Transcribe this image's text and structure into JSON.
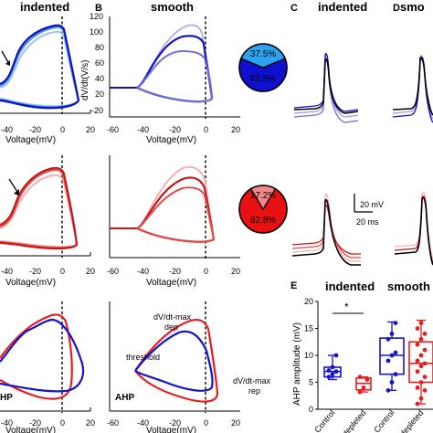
{
  "figure": {
    "titles": [
      {
        "id": "A",
        "text": "indented"
      },
      {
        "id": "B",
        "text": "smooth"
      },
      {
        "id": "C",
        "text": "indented"
      },
      {
        "id": "D",
        "text": "smo"
      }
    ],
    "letters": [
      {
        "id": "B",
        "text": "B"
      },
      {
        "id": "C",
        "text": "C"
      },
      {
        "id": "D",
        "text": "D"
      },
      {
        "id": "E",
        "text": "E"
      }
    ],
    "phase_plot": {
      "xlabel": "Voltage(mV)",
      "ylabel": "dV/dt(V/s)",
      "x_ticks": [
        "-60",
        "-40",
        "-20",
        "0",
        "20"
      ],
      "y_ticks": [
        "120",
        "100",
        "80",
        "60",
        "40",
        "20",
        "0",
        "-20"
      ]
    },
    "annotations": {
      "dep": [
        "dV/dt-max",
        "dep"
      ],
      "rep": [
        "dV/dt-max",
        "rep"
      ],
      "threshold": "threshold",
      "ahp": "AHP",
      "ahp_left": "HP"
    },
    "scale_bar": {
      "voltage": "20 mV",
      "time": "20 ms"
    },
    "box_plot": {
      "ylabel": "AHP amplitude (mV)",
      "y_ticks": [
        "20",
        "15",
        "10",
        "5",
        "0"
      ],
      "group_labels": [
        "indented",
        "smooth"
      ],
      "categories": [
        "Control",
        "DA depleted",
        "Control",
        "DA depleted"
      ],
      "significance": "*"
    }
  },
  "pies": [
    {
      "colors": [
        "#1010d0",
        "#2aa3f0"
      ],
      "slices": [
        {
          "value": 62.5,
          "label": "62.5%"
        },
        {
          "value": 37.5,
          "label": "37.5%"
        }
      ]
    },
    {
      "colors": [
        "#e81010",
        "#f08a8a"
      ],
      "slices": [
        {
          "value": 82.8,
          "label": "82.8%"
        },
        {
          "value": 17.2,
          "label": "17.2%"
        }
      ]
    }
  ],
  "chart_data": {
    "type": "bar",
    "title": "",
    "ylabel": "AHP amplitude (mV)",
    "ylim": [
      0,
      20
    ],
    "categories": [
      "Control",
      "DA depleted",
      "Control",
      "DA depleted"
    ],
    "series": [
      {
        "values": [
          7,
          4.8,
          10,
          8.5
        ],
        "box_q1": [
          6,
          3.6,
          6.5,
          5
        ],
        "box_q3": [
          7.8,
          5.8,
          13.2,
          12.5
        ],
        "whisker_low": [
          5.5,
          3.2,
          3.5,
          1
        ],
        "whisker_high": [
          10,
          6,
          16.2,
          16.5
        ],
        "colors": [
          "#1414c8",
          "#e81e1e",
          "#1414c8",
          "#e81e1e"
        ],
        "points": [
          [
            6,
            6.5,
            7,
            7.2,
            7.8,
            10
          ],
          [
            3.2,
            4,
            5.5,
            6
          ],
          [
            3.5,
            5,
            6.5,
            9,
            10,
            10.5,
            13,
            14,
            16
          ],
          [
            1,
            2,
            3.5,
            4,
            5,
            6,
            7,
            8,
            8.5,
            9,
            10,
            11,
            12,
            13,
            14,
            15,
            16
          ]
        ]
      }
    ]
  }
}
